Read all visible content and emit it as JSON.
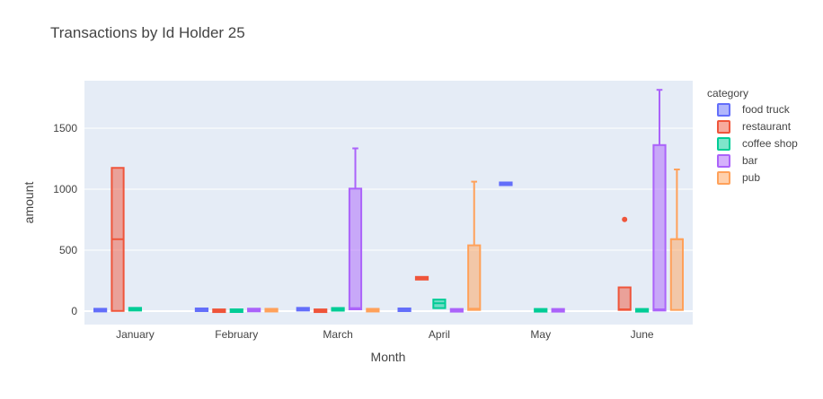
{
  "chart_data": {
    "type": "box",
    "title": "Transactions by Id Holder 25",
    "xlabel": "Month",
    "ylabel": "amount",
    "categories": [
      "January",
      "February",
      "March",
      "April",
      "May",
      "June"
    ],
    "ylim": [
      -110,
      1890
    ],
    "yticks": [
      0,
      500,
      1000,
      1500
    ],
    "grid": true,
    "legend": {
      "title": "category",
      "placement": "top-right"
    },
    "series": [
      {
        "name": "food truck",
        "color": "#636efa",
        "boxes": [
          {
            "month": "January",
            "min": 0,
            "q1": 2,
            "median": 8,
            "q3": 15,
            "max": 20
          },
          {
            "month": "February",
            "min": 2,
            "q1": 5,
            "median": 10,
            "q3": 18,
            "max": 22
          },
          {
            "month": "March",
            "min": 8,
            "q1": 12,
            "median": 15,
            "q3": 20,
            "max": 23
          },
          {
            "month": "April",
            "min": 2,
            "q1": 5,
            "median": 10,
            "q3": 18,
            "max": 22
          },
          {
            "month": "May",
            "min": 1040,
            "q1": 1042,
            "median": 1045,
            "q3": 1047,
            "max": 1049
          }
        ]
      },
      {
        "name": "restaurant",
        "color": "#ef553b",
        "boxes": [
          {
            "month": "January",
            "min": 0,
            "q1": 2,
            "median": 590,
            "q3": 1175,
            "max": 1180
          },
          {
            "month": "February",
            "min": 0,
            "q1": 1,
            "median": 3,
            "q3": 6,
            "max": 8
          },
          {
            "month": "March",
            "min": 0,
            "q1": 1,
            "median": 3,
            "q3": 6,
            "max": 8
          },
          {
            "month": "April",
            "min": 270,
            "q1": 270,
            "median": 270,
            "q3": 270,
            "max": 270
          },
          {
            "month": "June",
            "min": 5,
            "q1": 10,
            "median": 15,
            "q3": 195,
            "max": 200,
            "outliers": [
              752
            ]
          }
        ]
      },
      {
        "name": "coffee shop",
        "color": "#00cc96",
        "boxes": [
          {
            "month": "January",
            "min": 12,
            "q1": 14,
            "median": 16,
            "q3": 18,
            "max": 20
          },
          {
            "month": "February",
            "min": 0,
            "q1": 2,
            "median": 4,
            "q3": 6,
            "max": 8
          },
          {
            "month": "March",
            "min": 5,
            "q1": 8,
            "median": 15,
            "q3": 22,
            "max": 25
          },
          {
            "month": "April",
            "min": 20,
            "q1": 25,
            "median": 65,
            "q3": 95,
            "max": 100
          },
          {
            "month": "May",
            "min": 2,
            "q1": 4,
            "median": 7,
            "q3": 10,
            "max": 12
          },
          {
            "month": "June",
            "min": 2,
            "q1": 4,
            "median": 7,
            "q3": 10,
            "max": 12
          }
        ]
      },
      {
        "name": "bar",
        "color": "#ab63fa",
        "boxes": [
          {
            "month": "February",
            "min": 5,
            "q1": 7,
            "median": 9,
            "q3": 12,
            "max": 14
          },
          {
            "month": "March",
            "min": 10,
            "q1": 15,
            "median": 25,
            "q3": 1005,
            "max": 1335
          },
          {
            "month": "April",
            "min": 2,
            "q1": 4,
            "median": 7,
            "q3": 10,
            "max": 12
          },
          {
            "month": "May",
            "min": 2,
            "q1": 4,
            "median": 7,
            "q3": 10,
            "max": 12
          },
          {
            "month": "June",
            "min": 0,
            "q1": 5,
            "median": 15,
            "q3": 1362,
            "max": 1815
          }
        ]
      },
      {
        "name": "pub",
        "color": "#ffa15a",
        "boxes": [
          {
            "month": "February",
            "min": 2,
            "q1": 4,
            "median": 7,
            "q3": 12,
            "max": 14
          },
          {
            "month": "March",
            "min": 2,
            "q1": 4,
            "median": 7,
            "q3": 12,
            "max": 14
          },
          {
            "month": "April",
            "min": 5,
            "q1": 10,
            "median": 20,
            "q3": 540,
            "max": 1062
          },
          {
            "month": "June",
            "min": 5,
            "q1": 10,
            "median": 590,
            "q3": 590,
            "max": 1162
          }
        ]
      }
    ]
  }
}
